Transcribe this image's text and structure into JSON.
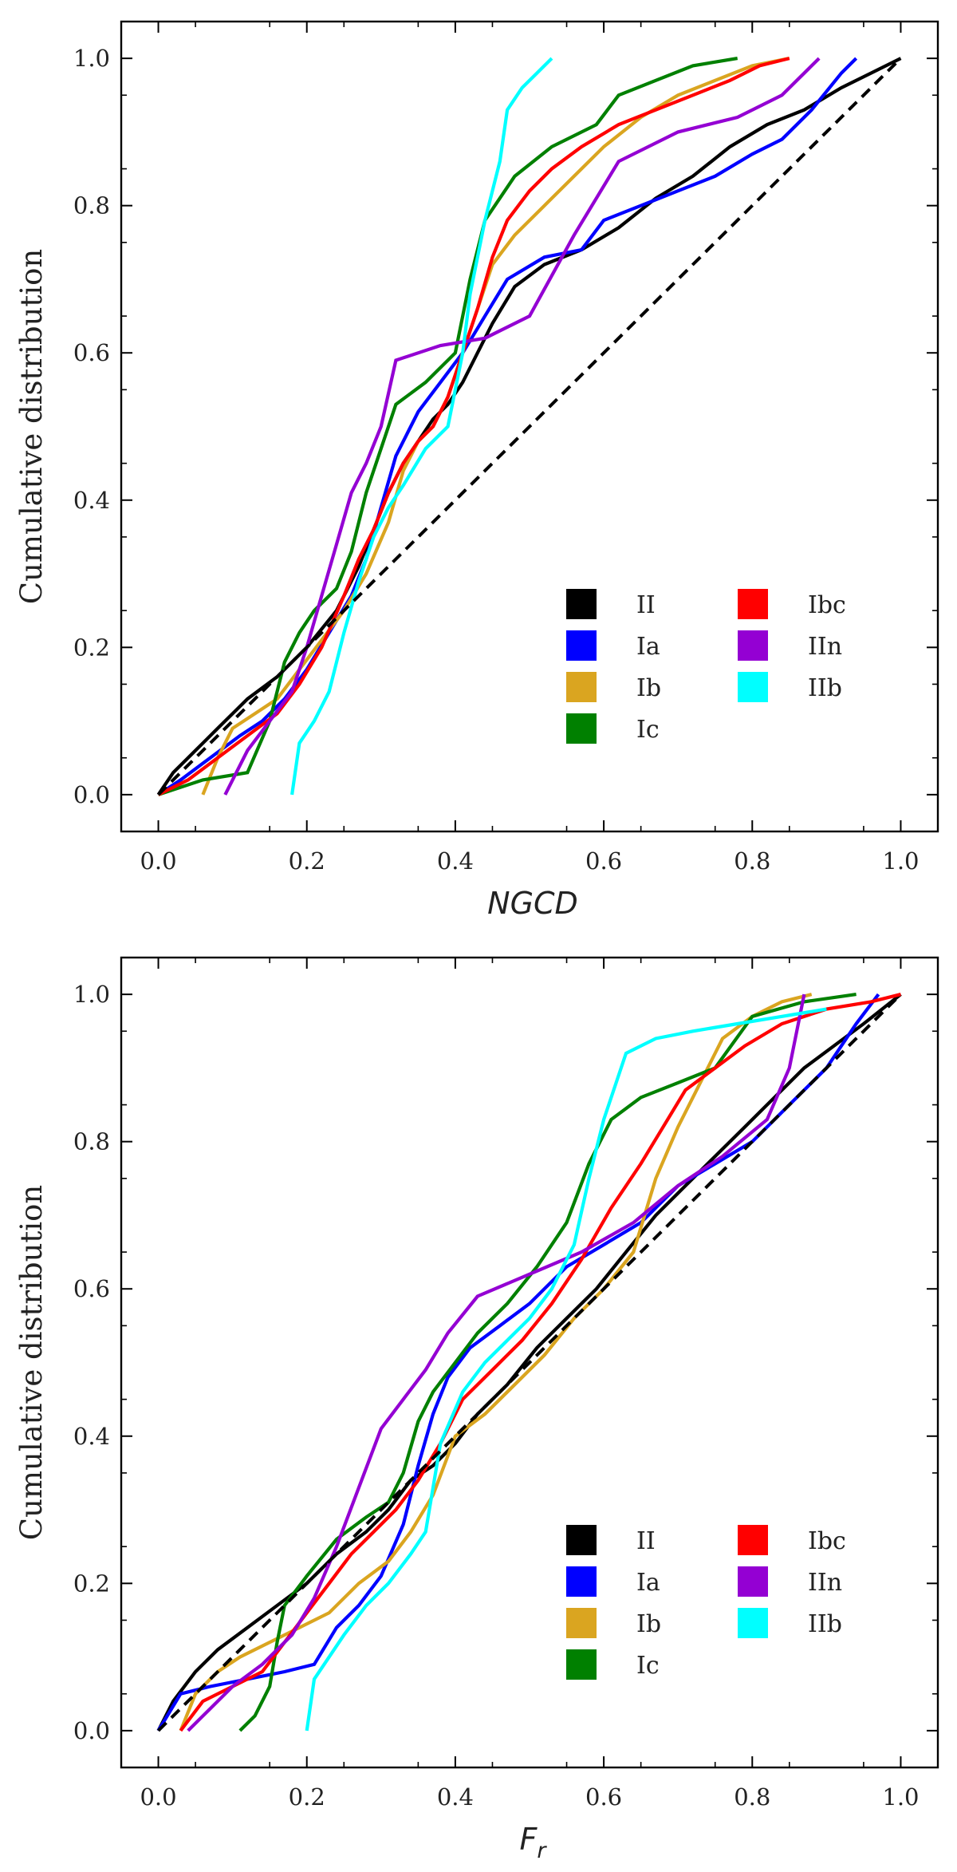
{
  "chart_data": [
    {
      "type": "line",
      "id": "top",
      "title": "",
      "xlabel": "NGCD",
      "ylabel": "Cumulative distribution",
      "xlim": [
        -0.05,
        1.05
      ],
      "ylim": [
        -0.05,
        1.05
      ],
      "xticks": [
        0.0,
        0.2,
        0.4,
        0.6,
        0.8,
        1.0
      ],
      "yticks": [
        0.0,
        0.2,
        0.4,
        0.6,
        0.8,
        1.0
      ],
      "xtick_labels": [
        "0.0",
        "0.2",
        "0.4",
        "0.6",
        "0.8",
        "1.0"
      ],
      "ytick_labels": [
        "0.0",
        "0.2",
        "0.4",
        "0.6",
        "0.8",
        "1.0"
      ],
      "grid": false,
      "legend_position": "bottom-right",
      "reference_line": {
        "name": "1:1",
        "x": [
          0,
          1
        ],
        "y": [
          0,
          1
        ],
        "color": "#000000",
        "style": "dashed"
      },
      "series": [
        {
          "name": "II",
          "color": "#000000",
          "x": [
            0.0,
            0.02,
            0.05,
            0.08,
            0.12,
            0.16,
            0.2,
            0.24,
            0.27,
            0.29,
            0.31,
            0.33,
            0.35,
            0.37,
            0.39,
            0.41,
            0.43,
            0.45,
            0.48,
            0.52,
            0.57,
            0.62,
            0.67,
            0.72,
            0.77,
            0.82,
            0.87,
            0.92,
            0.96,
            1.0
          ],
          "y": [
            0.0,
            0.03,
            0.06,
            0.09,
            0.13,
            0.16,
            0.2,
            0.25,
            0.31,
            0.36,
            0.41,
            0.45,
            0.48,
            0.51,
            0.53,
            0.56,
            0.6,
            0.64,
            0.69,
            0.72,
            0.74,
            0.77,
            0.81,
            0.84,
            0.88,
            0.91,
            0.93,
            0.96,
            0.98,
            1.0
          ]
        },
        {
          "name": "Ia",
          "color": "#0000ff",
          "x": [
            0.0,
            0.03,
            0.07,
            0.11,
            0.14,
            0.17,
            0.2,
            0.23,
            0.26,
            0.28,
            0.3,
            0.32,
            0.35,
            0.38,
            0.41,
            0.44,
            0.47,
            0.52,
            0.57,
            0.6,
            0.65,
            0.7,
            0.75,
            0.8,
            0.84,
            0.88,
            0.92,
            0.94
          ],
          "y": [
            0.0,
            0.02,
            0.05,
            0.08,
            0.1,
            0.13,
            0.17,
            0.22,
            0.27,
            0.32,
            0.39,
            0.46,
            0.52,
            0.56,
            0.6,
            0.65,
            0.7,
            0.73,
            0.74,
            0.78,
            0.8,
            0.82,
            0.84,
            0.87,
            0.89,
            0.93,
            0.98,
            1.0
          ]
        },
        {
          "name": "Ib",
          "color": "#daa520",
          "x": [
            0.06,
            0.08,
            0.1,
            0.13,
            0.16,
            0.19,
            0.22,
            0.25,
            0.28,
            0.31,
            0.33,
            0.35,
            0.37,
            0.39,
            0.41,
            0.43,
            0.45,
            0.48,
            0.52,
            0.56,
            0.6,
            0.65,
            0.7,
            0.75,
            0.8,
            0.85
          ],
          "y": [
            0.0,
            0.05,
            0.09,
            0.11,
            0.13,
            0.17,
            0.21,
            0.25,
            0.3,
            0.37,
            0.44,
            0.48,
            0.5,
            0.54,
            0.6,
            0.66,
            0.72,
            0.76,
            0.8,
            0.84,
            0.88,
            0.92,
            0.95,
            0.97,
            0.99,
            1.0
          ]
        },
        {
          "name": "Ic",
          "color": "#008000",
          "x": [
            0.0,
            0.06,
            0.12,
            0.15,
            0.17,
            0.19,
            0.21,
            0.24,
            0.26,
            0.28,
            0.3,
            0.32,
            0.36,
            0.4,
            0.42,
            0.44,
            0.48,
            0.53,
            0.59,
            0.62,
            0.67,
            0.72,
            0.78
          ],
          "y": [
            0.0,
            0.02,
            0.03,
            0.1,
            0.18,
            0.22,
            0.25,
            0.28,
            0.33,
            0.41,
            0.47,
            0.53,
            0.56,
            0.6,
            0.7,
            0.78,
            0.84,
            0.88,
            0.91,
            0.95,
            0.97,
            0.99,
            1.0
          ]
        },
        {
          "name": "Ibc",
          "color": "#ff0000",
          "x": [
            0.0,
            0.04,
            0.08,
            0.12,
            0.16,
            0.19,
            0.22,
            0.25,
            0.27,
            0.29,
            0.31,
            0.33,
            0.35,
            0.37,
            0.39,
            0.41,
            0.43,
            0.45,
            0.47,
            0.5,
            0.53,
            0.57,
            0.62,
            0.67,
            0.72,
            0.77,
            0.81,
            0.85
          ],
          "y": [
            0.0,
            0.02,
            0.05,
            0.08,
            0.11,
            0.15,
            0.2,
            0.27,
            0.32,
            0.36,
            0.41,
            0.45,
            0.48,
            0.5,
            0.54,
            0.6,
            0.66,
            0.73,
            0.78,
            0.82,
            0.85,
            0.88,
            0.91,
            0.93,
            0.95,
            0.97,
            0.99,
            1.0
          ]
        },
        {
          "name": "IIn",
          "color": "#9400d3",
          "x": [
            0.09,
            0.12,
            0.15,
            0.18,
            0.2,
            0.22,
            0.24,
            0.26,
            0.28,
            0.3,
            0.32,
            0.38,
            0.44,
            0.5,
            0.56,
            0.62,
            0.7,
            0.78,
            0.84,
            0.89
          ],
          "y": [
            0.0,
            0.06,
            0.1,
            0.14,
            0.2,
            0.27,
            0.34,
            0.41,
            0.45,
            0.5,
            0.59,
            0.61,
            0.62,
            0.65,
            0.76,
            0.86,
            0.9,
            0.92,
            0.95,
            1.0
          ]
        },
        {
          "name": "IIb",
          "color": "#00ffff",
          "x": [
            0.18,
            0.19,
            0.21,
            0.23,
            0.25,
            0.27,
            0.29,
            0.31,
            0.33,
            0.36,
            0.39,
            0.41,
            0.42,
            0.44,
            0.46,
            0.47,
            0.49,
            0.51,
            0.53
          ],
          "y": [
            0.0,
            0.07,
            0.1,
            0.14,
            0.22,
            0.29,
            0.35,
            0.39,
            0.42,
            0.47,
            0.5,
            0.6,
            0.68,
            0.78,
            0.86,
            0.93,
            0.96,
            0.98,
            1.0
          ]
        }
      ]
    },
    {
      "type": "line",
      "id": "bottom",
      "title": "",
      "xlabel": "F",
      "xlabel_sub": "r",
      "ylabel": "Cumulative distribution",
      "xlim": [
        -0.05,
        1.05
      ],
      "ylim": [
        -0.05,
        1.05
      ],
      "xticks": [
        0.0,
        0.2,
        0.4,
        0.6,
        0.8,
        1.0
      ],
      "yticks": [
        0.0,
        0.2,
        0.4,
        0.6,
        0.8,
        1.0
      ],
      "xtick_labels": [
        "0.0",
        "0.2",
        "0.4",
        "0.6",
        "0.8",
        "1.0"
      ],
      "ytick_labels": [
        "0.0",
        "0.2",
        "0.4",
        "0.6",
        "0.8",
        "1.0"
      ],
      "grid": false,
      "legend_position": "bottom-right",
      "reference_line": {
        "name": "1:1",
        "x": [
          0,
          1
        ],
        "y": [
          0,
          1
        ],
        "color": "#000000",
        "style": "dashed"
      },
      "series": [
        {
          "name": "II",
          "color": "#000000",
          "x": [
            0.0,
            0.02,
            0.05,
            0.08,
            0.12,
            0.16,
            0.2,
            0.24,
            0.28,
            0.31,
            0.34,
            0.37,
            0.4,
            0.43,
            0.47,
            0.51,
            0.55,
            0.59,
            0.63,
            0.67,
            0.71,
            0.75,
            0.79,
            0.83,
            0.87,
            0.91,
            0.95,
            1.0
          ],
          "y": [
            0.0,
            0.04,
            0.08,
            0.11,
            0.14,
            0.17,
            0.2,
            0.24,
            0.27,
            0.3,
            0.34,
            0.36,
            0.39,
            0.43,
            0.47,
            0.52,
            0.56,
            0.6,
            0.65,
            0.7,
            0.74,
            0.78,
            0.82,
            0.86,
            0.9,
            0.93,
            0.96,
            1.0
          ]
        },
        {
          "name": "Ia",
          "color": "#0000ff",
          "x": [
            0.0,
            0.03,
            0.07,
            0.12,
            0.17,
            0.21,
            0.24,
            0.27,
            0.3,
            0.33,
            0.35,
            0.37,
            0.39,
            0.42,
            0.46,
            0.5,
            0.55,
            0.6,
            0.65,
            0.7,
            0.75,
            0.8,
            0.85,
            0.9,
            0.94,
            0.97
          ],
          "y": [
            0.0,
            0.05,
            0.06,
            0.07,
            0.08,
            0.09,
            0.14,
            0.17,
            0.21,
            0.28,
            0.36,
            0.43,
            0.48,
            0.52,
            0.55,
            0.58,
            0.63,
            0.66,
            0.69,
            0.74,
            0.77,
            0.8,
            0.85,
            0.9,
            0.96,
            1.0
          ]
        },
        {
          "name": "Ib",
          "color": "#daa520",
          "x": [
            0.03,
            0.05,
            0.08,
            0.11,
            0.15,
            0.19,
            0.23,
            0.27,
            0.31,
            0.34,
            0.37,
            0.4,
            0.44,
            0.48,
            0.52,
            0.56,
            0.6,
            0.64,
            0.67,
            0.7,
            0.73,
            0.76,
            0.8,
            0.84,
            0.88
          ],
          "y": [
            0.0,
            0.05,
            0.08,
            0.1,
            0.12,
            0.14,
            0.16,
            0.2,
            0.23,
            0.27,
            0.32,
            0.4,
            0.43,
            0.47,
            0.51,
            0.56,
            0.6,
            0.65,
            0.75,
            0.82,
            0.88,
            0.94,
            0.97,
            0.99,
            1.0
          ]
        },
        {
          "name": "Ic",
          "color": "#008000",
          "x": [
            0.11,
            0.13,
            0.15,
            0.16,
            0.17,
            0.2,
            0.24,
            0.28,
            0.31,
            0.33,
            0.35,
            0.37,
            0.4,
            0.43,
            0.47,
            0.51,
            0.55,
            0.58,
            0.61,
            0.65,
            0.7,
            0.75,
            0.8,
            0.87,
            0.94
          ],
          "y": [
            0.0,
            0.02,
            0.06,
            0.12,
            0.17,
            0.21,
            0.26,
            0.29,
            0.31,
            0.35,
            0.42,
            0.46,
            0.5,
            0.54,
            0.58,
            0.63,
            0.69,
            0.77,
            0.83,
            0.86,
            0.88,
            0.9,
            0.97,
            0.99,
            1.0
          ]
        },
        {
          "name": "Ibc",
          "color": "#ff0000",
          "x": [
            0.03,
            0.06,
            0.1,
            0.14,
            0.17,
            0.2,
            0.23,
            0.26,
            0.29,
            0.32,
            0.35,
            0.38,
            0.41,
            0.45,
            0.49,
            0.53,
            0.57,
            0.61,
            0.65,
            0.68,
            0.71,
            0.75,
            0.79,
            0.84,
            0.9,
            0.96,
            1.0
          ],
          "y": [
            0.0,
            0.04,
            0.06,
            0.08,
            0.12,
            0.16,
            0.2,
            0.24,
            0.27,
            0.3,
            0.34,
            0.39,
            0.45,
            0.49,
            0.53,
            0.58,
            0.64,
            0.71,
            0.77,
            0.82,
            0.87,
            0.9,
            0.93,
            0.96,
            0.98,
            0.99,
            1.0
          ]
        },
        {
          "name": "IIn",
          "color": "#9400d3",
          "x": [
            0.04,
            0.07,
            0.1,
            0.14,
            0.18,
            0.21,
            0.24,
            0.27,
            0.3,
            0.33,
            0.36,
            0.39,
            0.43,
            0.5,
            0.57,
            0.64,
            0.7,
            0.76,
            0.82,
            0.85,
            0.87
          ],
          "y": [
            0.0,
            0.03,
            0.06,
            0.09,
            0.13,
            0.18,
            0.25,
            0.33,
            0.41,
            0.45,
            0.49,
            0.54,
            0.59,
            0.62,
            0.65,
            0.69,
            0.74,
            0.78,
            0.83,
            0.9,
            1.0
          ]
        },
        {
          "name": "IIb",
          "color": "#00ffff",
          "x": [
            0.2,
            0.21,
            0.23,
            0.25,
            0.28,
            0.31,
            0.34,
            0.36,
            0.38,
            0.41,
            0.44,
            0.47,
            0.5,
            0.53,
            0.56,
            0.58,
            0.6,
            0.63,
            0.67,
            0.72,
            0.78,
            0.84,
            0.9
          ],
          "y": [
            0.0,
            0.07,
            0.1,
            0.13,
            0.17,
            0.2,
            0.24,
            0.27,
            0.39,
            0.46,
            0.5,
            0.53,
            0.56,
            0.6,
            0.66,
            0.75,
            0.83,
            0.92,
            0.94,
            0.95,
            0.96,
            0.97,
            0.98
          ]
        }
      ]
    }
  ]
}
